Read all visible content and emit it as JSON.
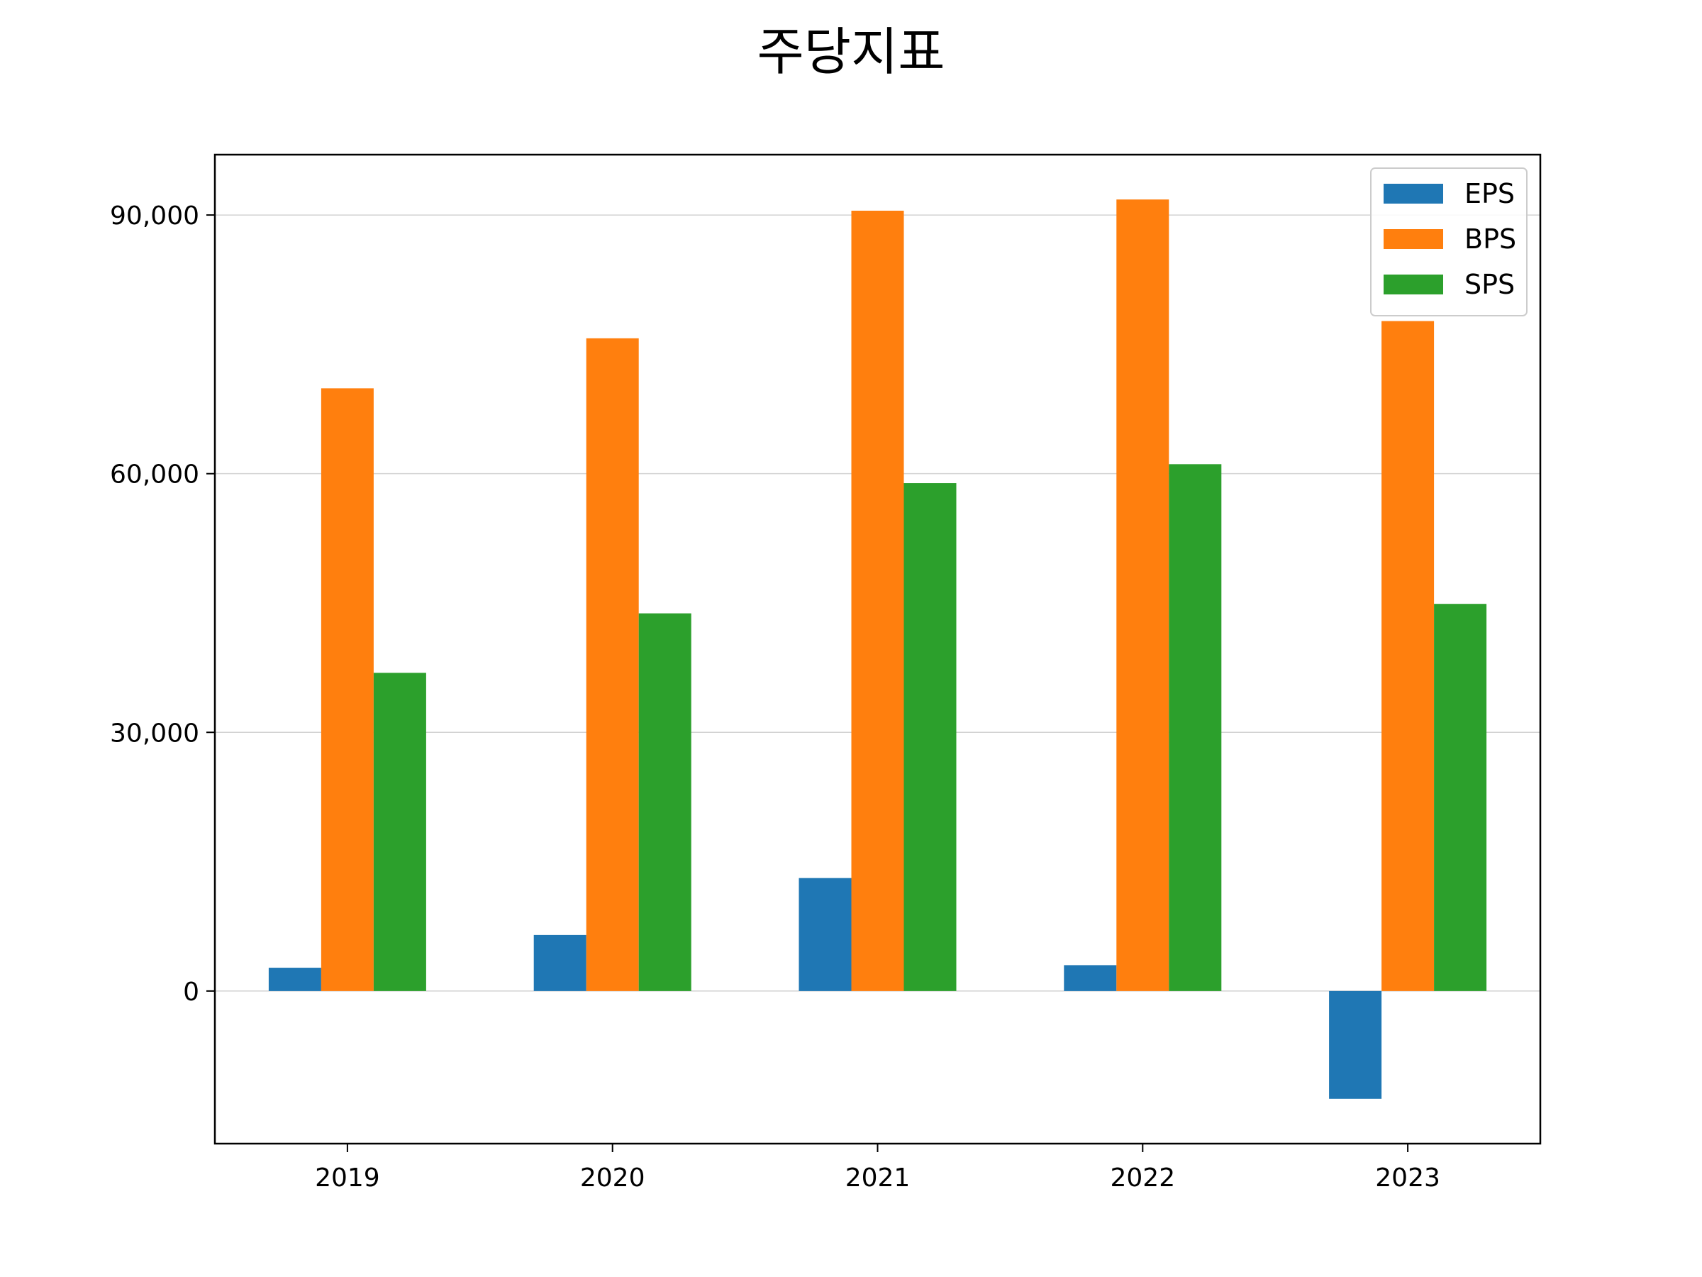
{
  "chart_data": {
    "type": "bar",
    "title": "주당지표",
    "categories": [
      "2019",
      "2020",
      "2021",
      "2022",
      "2023"
    ],
    "series": [
      {
        "name": "EPS",
        "color": "#1f77b4",
        "values": [
          2700,
          6500,
          13100,
          3000,
          -12500
        ]
      },
      {
        "name": "BPS",
        "color": "#ff7f0e",
        "values": [
          69900,
          75700,
          90500,
          91800,
          77700
        ]
      },
      {
        "name": "SPS",
        "color": "#2ca02c",
        "values": [
          36900,
          43800,
          58900,
          61100,
          44900
        ]
      }
    ],
    "yticks": [
      0,
      30000,
      60000,
      90000
    ],
    "ytick_labels": [
      "0",
      "30,000",
      "60,000",
      "90,000"
    ],
    "ylim": [
      -17700,
      97000
    ],
    "xlabel": "",
    "ylabel": "",
    "grid": "horizontal",
    "legend_position": "top-right"
  }
}
